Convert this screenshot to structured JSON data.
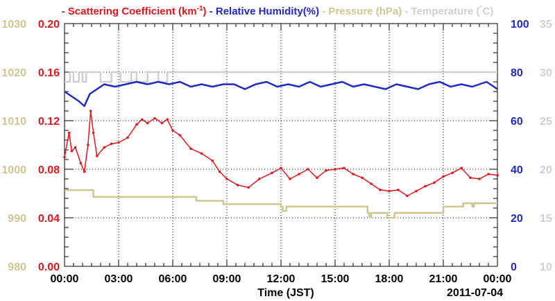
{
  "chart_data": {
    "type": "line",
    "legend": {
      "position": "top",
      "items": [
        {
          "marker": "-",
          "label": "Scattering Coefficient (km",
          "sup": "-1",
          "tail": ")",
          "color": "#e8141c"
        },
        {
          "marker": "-",
          "label": "Relative Humidity(%)",
          "color": "#1f28c8"
        },
        {
          "marker": "-",
          "label": "Pressure (hPa)",
          "color": "#cfc68e"
        },
        {
          "marker": "-",
          "label": "Temperature (",
          "deg": "°",
          "tail": "C)",
          "color": "#cfcfcf"
        }
      ]
    },
    "xlabel": "Time (JST)",
    "date_label": "2011-07-04",
    "x_hours_range": [
      0,
      24
    ],
    "x_ticks": [
      "00:00",
      "03:00",
      "06:00",
      "09:00",
      "12:00",
      "15:00",
      "18:00",
      "21:00",
      "00:00"
    ],
    "grid": true,
    "axes": {
      "pressure": {
        "side": "left-outer",
        "color": "#cfc68e",
        "ylim": [
          980,
          1030
        ],
        "ticks": [
          "980",
          "990",
          "1000",
          "1010",
          "1020",
          "1030"
        ]
      },
      "scattering": {
        "side": "left-inner",
        "color": "#e8141c",
        "ylim": [
          0,
          0.2
        ],
        "ticks": [
          "0.00",
          "0.04",
          "0.08",
          "0.12",
          "0.16",
          "0.20"
        ]
      },
      "humidity": {
        "side": "right-inner",
        "color": "#1f28c8",
        "ylim": [
          0,
          100
        ],
        "ticks": [
          "0",
          "20",
          "40",
          "60",
          "80",
          "100"
        ]
      },
      "temperature": {
        "side": "right-outer",
        "color": "#cfcfcf",
        "ylim": [
          10,
          35
        ],
        "ticks": [
          "10",
          "15",
          "20",
          "25",
          "30",
          "35"
        ]
      }
    },
    "series": [
      {
        "name": "Scattering Coefficient",
        "axis": "scattering",
        "color": "#e8141c",
        "markers": true,
        "x": [
          0,
          0.25,
          0.4,
          0.6,
          0.9,
          1.1,
          1.3,
          1.45,
          1.6,
          1.8,
          2.2,
          2.6,
          3.0,
          3.5,
          4.0,
          4.3,
          4.6,
          5.0,
          5.4,
          5.7,
          6.0,
          6.4,
          7.0,
          7.6,
          8.2,
          8.6,
          9.0,
          9.6,
          10.2,
          10.8,
          11.5,
          12.0,
          12.5,
          13.0,
          13.5,
          14.0,
          14.5,
          15.0,
          15.5,
          16.0,
          16.5,
          17.0,
          17.5,
          18.0,
          18.5,
          19.0,
          19.5,
          20.0,
          20.5,
          21.0,
          21.5,
          22.0,
          22.5,
          23.0,
          23.5,
          24.0
        ],
        "y": [
          0.09,
          0.11,
          0.095,
          0.098,
          0.085,
          0.078,
          0.1,
          0.128,
          0.11,
          0.091,
          0.098,
          0.101,
          0.102,
          0.106,
          0.117,
          0.121,
          0.118,
          0.122,
          0.118,
          0.121,
          0.112,
          0.108,
          0.097,
          0.093,
          0.087,
          0.078,
          0.072,
          0.067,
          0.065,
          0.072,
          0.077,
          0.081,
          0.072,
          0.076,
          0.08,
          0.073,
          0.079,
          0.08,
          0.081,
          0.076,
          0.073,
          0.068,
          0.063,
          0.062,
          0.063,
          0.058,
          0.062,
          0.066,
          0.069,
          0.074,
          0.077,
          0.081,
          0.073,
          0.072,
          0.076,
          0.075
        ]
      },
      {
        "name": "Relative Humidity(%)",
        "axis": "humidity",
        "color": "#1f28c8",
        "x": [
          0,
          0.4,
          0.8,
          1.1,
          1.4,
          1.8,
          2.2,
          2.8,
          3.4,
          4.0,
          4.6,
          5.2,
          5.8,
          6.4,
          7.0,
          7.6,
          8.2,
          8.8,
          9.4,
          10.0,
          10.6,
          11.2,
          11.8,
          12.4,
          13.0,
          13.6,
          14.2,
          14.8,
          15.4,
          16.0,
          16.6,
          17.2,
          17.8,
          18.4,
          19.0,
          19.6,
          20.2,
          20.8,
          21.4,
          22.0,
          22.6,
          23.0,
          23.4,
          23.8,
          24.0
        ],
        "y": [
          72,
          70,
          68,
          66,
          71,
          73,
          75,
          74,
          75,
          76,
          75,
          76,
          75,
          76,
          74,
          75,
          74,
          75,
          75,
          73,
          75,
          76,
          74,
          75,
          74,
          76,
          74,
          75,
          76,
          74,
          75,
          74,
          73,
          75,
          74,
          73,
          75,
          76,
          74,
          75,
          74,
          75,
          76,
          74,
          73
        ]
      },
      {
        "name": "Pressure (hPa)",
        "axis": "pressure",
        "color": "#cfc68e",
        "step": true,
        "x": [
          0,
          1.6,
          7.3,
          8.8,
          12.0,
          12.1,
          12.2,
          12.3,
          16.8,
          16.9,
          17.0,
          17.9,
          18.0,
          18.3,
          18.5,
          19.2,
          21.0,
          22.0,
          22.1,
          22.6,
          22.7,
          24.0
        ],
        "y": [
          995.7,
          994.3,
          993.5,
          992.8,
          992.3,
          991.4,
          991.4,
          992.3,
          991.0,
          990.1,
          991.0,
          990.0,
          990.0,
          991.0,
          991.0,
          991.0,
          992.3,
          992.3,
          993.0,
          992.3,
          993.0,
          993.0
        ]
      },
      {
        "name": "Temperature (C)",
        "axis": "temperature",
        "color": "#cfcfcf",
        "step": true,
        "x": [
          0,
          0.3,
          0.5,
          0.8,
          1.0,
          1.2,
          2.0,
          2.6,
          3.1,
          3.7,
          4.0,
          4.6,
          5.2,
          5.7,
          6.0,
          24.0
        ],
        "y": [
          29.0,
          30.0,
          29.0,
          30.0,
          29.0,
          30.0,
          29.0,
          30.0,
          29.0,
          30.0,
          29.0,
          30.0,
          29.0,
          30.0,
          30.0,
          30.0
        ]
      }
    ]
  }
}
